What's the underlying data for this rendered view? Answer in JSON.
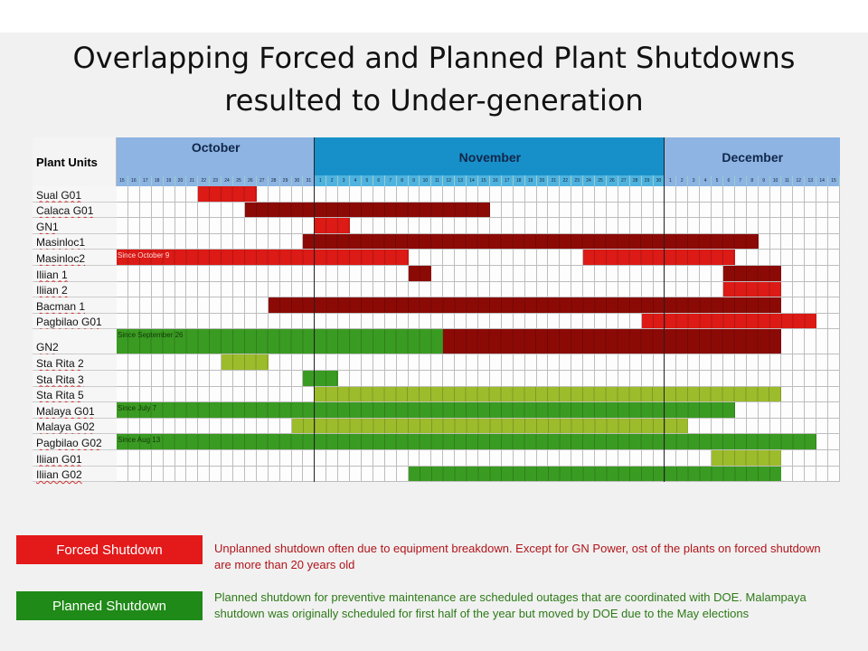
{
  "title_line1": "Overlapping Forced and Planned Plant Shutdowns",
  "title_line2": "resulted to Under-generation",
  "chart_data": {
    "type": "gantt",
    "row_header": "Plant Units",
    "months": [
      {
        "name": "October",
        "abbr": "Oct",
        "first_day": 15,
        "last_day": 31,
        "color": "#8db4e3",
        "day_color": "#8db4e3"
      },
      {
        "name": "November",
        "abbr": "Nov",
        "first_day": 1,
        "last_day": 30,
        "color": "#1790c9",
        "day_color": "#4fb3e0"
      },
      {
        "name": "December",
        "abbr": "Dec",
        "first_day": 1,
        "last_day": 15,
        "color": "#8db4e3",
        "day_color": "#8db4e3"
      }
    ],
    "colors": {
      "forced": "#dc1a16",
      "forced_dark": "#8c0a06",
      "planned": "#3a9b22",
      "planned_light": "#9cbc2c"
    },
    "rows": [
      {
        "name": "Sual G01",
        "bars": [
          {
            "type": "forced",
            "from": "Oct 22",
            "to": "Oct 26"
          }
        ]
      },
      {
        "name": "Calaca G01",
        "bars": [
          {
            "type": "forced_dark",
            "from": "Oct 26",
            "to": "Nov 15"
          }
        ]
      },
      {
        "name": "GN1",
        "bars": [
          {
            "type": "forced",
            "from": "Nov 1",
            "to": "Nov 3"
          }
        ]
      },
      {
        "name": "Masinloc1",
        "bars": [
          {
            "type": "forced_dark",
            "from": "Oct 31",
            "to": "Dec 8"
          }
        ]
      },
      {
        "name": "Masinloc2",
        "bars": [
          {
            "type": "forced",
            "from": "Oct 15",
            "to": "Nov 8",
            "label": "Since October 9"
          },
          {
            "type": "forced",
            "from": "Nov 24",
            "to": "Dec 6"
          }
        ]
      },
      {
        "name": "Iliian 1",
        "bars": [
          {
            "type": "forced_dark",
            "from": "Nov 9",
            "to": "Nov 10"
          },
          {
            "type": "forced_dark",
            "from": "Dec 6",
            "to": "Dec 10"
          }
        ]
      },
      {
        "name": "Iliian 2",
        "bars": [
          {
            "type": "forced",
            "from": "Dec 6",
            "to": "Dec 10"
          }
        ]
      },
      {
        "name": "Bacman 1",
        "bars": [
          {
            "type": "forced_dark",
            "from": "Oct 28",
            "to": "Dec 10"
          }
        ]
      },
      {
        "name": "Pagbilao G01",
        "bars": [
          {
            "type": "forced",
            "from": "Nov 29",
            "to": "Dec 13"
          }
        ]
      },
      {
        "name": "GN2",
        "tall": true,
        "bars": [
          {
            "type": "planned",
            "from": "Oct 15",
            "to": "Nov 11",
            "label": "Since September 26"
          },
          {
            "type": "forced_dark",
            "from": "Nov 12",
            "to": "Dec 10"
          }
        ]
      },
      {
        "name": "Sta Rita 2",
        "bars": [
          {
            "type": "planned_light",
            "from": "Oct 24",
            "to": "Oct 27"
          }
        ]
      },
      {
        "name": "Sta Rita 3",
        "bars": [
          {
            "type": "planned",
            "from": "Oct 31",
            "to": "Nov 2"
          }
        ]
      },
      {
        "name": "Sta Rita 5",
        "bars": [
          {
            "type": "planned_light",
            "from": "Nov 1",
            "to": "Dec 10"
          }
        ]
      },
      {
        "name": "Malaya G01",
        "bars": [
          {
            "type": "planned",
            "from": "Oct 15",
            "to": "Dec 6",
            "label": "Since July 7"
          }
        ]
      },
      {
        "name": "Malaya G02",
        "bars": [
          {
            "type": "planned_light",
            "from": "Oct 30",
            "to": "Dec 2"
          }
        ]
      },
      {
        "name": "Pagbilao G02",
        "bars": [
          {
            "type": "planned",
            "from": "Oct 15",
            "to": "Dec 13",
            "label": "Since Aug 13"
          }
        ]
      },
      {
        "name": "Iliian G01",
        "bars": [
          {
            "type": "planned_light",
            "from": "Dec 5",
            "to": "Dec 10"
          }
        ]
      },
      {
        "name": "Iliian G02",
        "bars": [
          {
            "type": "planned",
            "from": "Nov 9",
            "to": "Dec 10"
          }
        ]
      }
    ]
  },
  "legend": {
    "forced_label": "Forced  Shutdown",
    "forced_text": "Unplanned  shutdown  often due to equipment  breakdown.  Except for GN Power, ost of the plants on forced shutdown  are more than   20 years old",
    "planned_label": "Planned Shutdown",
    "planned_text": "Planned shutdown  for preventive  maintenance  are scheduled  outages that are coordinated with DOE. Malampaya shutdown  was originally scheduled  for first half of the year but moved by DOE due to the May elections"
  }
}
